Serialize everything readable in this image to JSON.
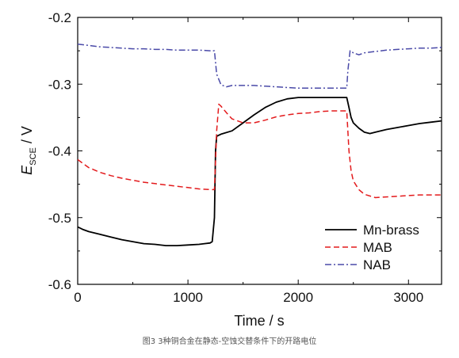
{
  "caption": "图3   3种铜合金在静态-空蚀交替条件下的开路电位",
  "chart_data": {
    "type": "line",
    "xlabel": "Time / s",
    "ylabel_main": "E",
    "ylabel_sub": "SCE",
    "ylabel_unit": " / V",
    "xlim": [
      0,
      3300
    ],
    "ylim": [
      -0.6,
      -0.2
    ],
    "xticks": [
      0,
      1000,
      2000,
      3000
    ],
    "xtick_labels": [
      "0",
      "1000",
      "2000",
      "3000"
    ],
    "yticks": [
      -0.6,
      -0.5,
      -0.4,
      -0.3,
      -0.2
    ],
    "ytick_labels": [
      "-0.6",
      "-0.5",
      "-0.4",
      "-0.3",
      "-0.2"
    ],
    "legend_position": "lower-right",
    "grid": false,
    "series": [
      {
        "name": "Mn-brass",
        "color": "#000000",
        "dash": "solid",
        "x": [
          0,
          50,
          100,
          200,
          300,
          400,
          500,
          600,
          700,
          800,
          900,
          1000,
          1100,
          1150,
          1200,
          1220,
          1240,
          1250,
          1260,
          1300,
          1400,
          1500,
          1600,
          1700,
          1800,
          1900,
          2000,
          2100,
          2200,
          2300,
          2400,
          2440,
          2460,
          2480,
          2500,
          2550,
          2600,
          2650,
          2700,
          2800,
          2900,
          3000,
          3100,
          3200,
          3300
        ],
        "y": [
          -0.514,
          -0.518,
          -0.521,
          -0.525,
          -0.529,
          -0.533,
          -0.536,
          -0.539,
          -0.54,
          -0.542,
          -0.542,
          -0.541,
          -0.54,
          -0.539,
          -0.538,
          -0.536,
          -0.5,
          -0.4,
          -0.378,
          -0.375,
          -0.37,
          -0.358,
          -0.346,
          -0.335,
          -0.327,
          -0.322,
          -0.32,
          -0.32,
          -0.32,
          -0.32,
          -0.32,
          -0.32,
          -0.335,
          -0.35,
          -0.358,
          -0.366,
          -0.372,
          -0.374,
          -0.372,
          -0.368,
          -0.365,
          -0.362,
          -0.359,
          -0.357,
          -0.355
        ]
      },
      {
        "name": "MAB",
        "color": "#e31a1c",
        "dash": "dashed",
        "x": [
          0,
          100,
          200,
          300,
          400,
          500,
          600,
          700,
          800,
          900,
          1000,
          1100,
          1200,
          1240,
          1260,
          1280,
          1300,
          1350,
          1400,
          1500,
          1600,
          1700,
          1800,
          1900,
          2000,
          2100,
          2200,
          2300,
          2400,
          2440,
          2460,
          2480,
          2500,
          2550,
          2600,
          2700,
          2800,
          2900,
          3000,
          3100,
          3200,
          3300
        ],
        "y": [
          -0.413,
          -0.425,
          -0.432,
          -0.437,
          -0.441,
          -0.444,
          -0.447,
          -0.449,
          -0.451,
          -0.453,
          -0.455,
          -0.457,
          -0.458,
          -0.458,
          -0.37,
          -0.33,
          -0.333,
          -0.343,
          -0.352,
          -0.358,
          -0.358,
          -0.354,
          -0.349,
          -0.346,
          -0.344,
          -0.343,
          -0.341,
          -0.34,
          -0.34,
          -0.34,
          -0.4,
          -0.43,
          -0.445,
          -0.458,
          -0.465,
          -0.47,
          -0.469,
          -0.468,
          -0.467,
          -0.466,
          -0.466,
          -0.466
        ]
      },
      {
        "name": "NAB",
        "color": "#4a4aa8",
        "dash": "dashdot",
        "x": [
          0,
          100,
          200,
          300,
          400,
          500,
          600,
          700,
          800,
          900,
          1000,
          1100,
          1200,
          1240,
          1260,
          1300,
          1350,
          1400,
          1500,
          1600,
          1700,
          1800,
          1900,
          2000,
          2100,
          2200,
          2300,
          2400,
          2440,
          2450,
          2470,
          2500,
          2550,
          2600,
          2700,
          2800,
          2900,
          3000,
          3100,
          3200,
          3300
        ],
        "y": [
          -0.24,
          -0.242,
          -0.244,
          -0.245,
          -0.246,
          -0.247,
          -0.247,
          -0.248,
          -0.248,
          -0.249,
          -0.249,
          -0.249,
          -0.25,
          -0.25,
          -0.285,
          -0.301,
          -0.304,
          -0.302,
          -0.302,
          -0.302,
          -0.303,
          -0.304,
          -0.305,
          -0.306,
          -0.306,
          -0.306,
          -0.306,
          -0.306,
          -0.306,
          -0.28,
          -0.25,
          -0.253,
          -0.256,
          -0.253,
          -0.251,
          -0.249,
          -0.248,
          -0.247,
          -0.246,
          -0.246,
          -0.245
        ]
      }
    ]
  }
}
